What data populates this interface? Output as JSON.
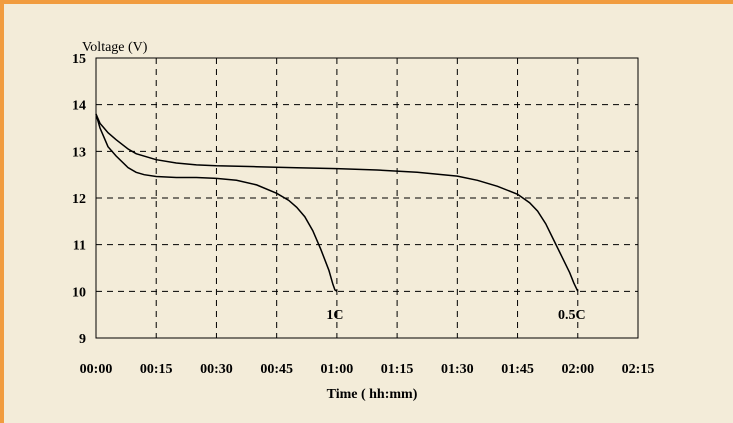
{
  "chart_data": {
    "type": "line",
    "xlabel": "Time ( hh:mm)",
    "ylabel": "Voltage (V)",
    "ylim": [
      9,
      15
    ],
    "yticks": [
      "9",
      "10",
      "11",
      "12",
      "13",
      "14",
      "15"
    ],
    "xlim": [
      0,
      135
    ],
    "xticks": [
      "00:00",
      "00:15",
      "00:30",
      "00:45",
      "01:00",
      "01:15",
      "01:30",
      "01:45",
      "02:00",
      "02:15"
    ],
    "grid": true,
    "series": [
      {
        "name": "1C",
        "x": [
          0,
          1,
          2,
          3,
          5,
          8,
          10,
          12,
          15,
          20,
          25,
          30,
          35,
          40,
          45,
          48,
          50,
          52,
          54,
          56,
          58,
          59,
          59.5,
          60
        ],
        "y": [
          13.8,
          13.5,
          13.3,
          13.1,
          12.9,
          12.65,
          12.55,
          12.5,
          12.46,
          12.44,
          12.44,
          12.42,
          12.38,
          12.28,
          12.1,
          11.95,
          11.8,
          11.6,
          11.3,
          10.9,
          10.45,
          10.15,
          10.03,
          10.0
        ]
      },
      {
        "name": "0.5C",
        "x": [
          0,
          1,
          2,
          3,
          5,
          8,
          10,
          15,
          20,
          25,
          30,
          40,
          50,
          60,
          70,
          80,
          90,
          95,
          100,
          105,
          108,
          110,
          112,
          114,
          116,
          118,
          119,
          120
        ],
        "y": [
          13.8,
          13.6,
          13.5,
          13.4,
          13.25,
          13.05,
          12.95,
          12.82,
          12.75,
          12.71,
          12.69,
          12.67,
          12.65,
          12.63,
          12.6,
          12.55,
          12.47,
          12.38,
          12.25,
          12.08,
          11.9,
          11.72,
          11.45,
          11.1,
          10.75,
          10.4,
          10.18,
          10.0
        ]
      }
    ]
  }
}
